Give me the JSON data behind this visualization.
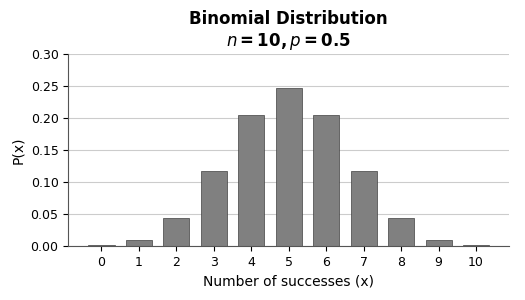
{
  "title_line1": "Binomial Distribution",
  "title_line2": "n = 10, p = 0.5",
  "n": 10,
  "p": 0.5,
  "x_values": [
    0,
    1,
    2,
    3,
    4,
    5,
    6,
    7,
    8,
    9,
    10
  ],
  "pmf_values": [
    0.000977,
    0.009766,
    0.043945,
    0.117188,
    0.205078,
    0.246094,
    0.205078,
    0.117188,
    0.043945,
    0.009766,
    0.000977
  ],
  "bar_color": "#808080",
  "bar_edge_color": "#404040",
  "xlabel": "Number of successes (x)",
  "ylabel": "P(x)",
  "ylim": [
    0,
    0.3
  ],
  "yticks": [
    0.0,
    0.05,
    0.1,
    0.15,
    0.2,
    0.25,
    0.3
  ],
  "xticks": [
    0,
    1,
    2,
    3,
    4,
    5,
    6,
    7,
    8,
    9,
    10
  ],
  "background_color": "#ffffff",
  "title_fontsize": 12,
  "subtitle_fontsize": 11,
  "axis_label_fontsize": 10,
  "tick_fontsize": 9,
  "bar_width": 0.7
}
